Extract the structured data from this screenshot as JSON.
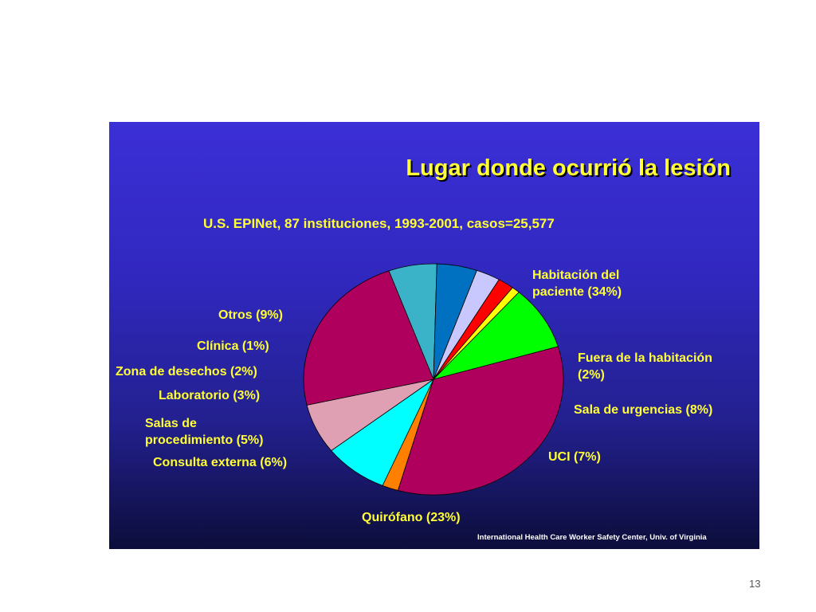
{
  "slide": {
    "page_number": "13"
  },
  "chart_data": {
    "type": "pie",
    "title": "Lugar donde ocurrió la lesión",
    "subtitle": "U.S. EPINet, 87 instituciones, 1993-2001, casos=25,577",
    "source": "International Health Care Worker Safety Center, Univ. of Virginia",
    "slices": [
      {
        "lines": [
          "Habitación del",
          "paciente (34%)"
        ],
        "value": 34,
        "color": "#b0005e"
      },
      {
        "lines": [
          "Fuera de la habitación",
          "(2%)"
        ],
        "value": 2,
        "color": "#ff8000"
      },
      {
        "lines": [
          "Sala de urgencias (8%)"
        ],
        "value": 8,
        "color": "#00ffff"
      },
      {
        "lines": [
          "UCI (7%)"
        ],
        "value": 7,
        "color": "#e0a0b4"
      },
      {
        "lines": [
          "Quirófano (23%)"
        ],
        "value": 23,
        "color": "#b0005e"
      },
      {
        "lines": [
          "Consulta externa (6%)"
        ],
        "value": 6,
        "color": "#3ab3c8"
      },
      {
        "lines": [
          "Salas de",
          "procedimiento (5%)"
        ],
        "value": 5,
        "color": "#0070c0"
      },
      {
        "lines": [
          "Laboratorio (3%)"
        ],
        "value": 3,
        "color": "#c8c8ff"
      },
      {
        "lines": [
          "Zona de desechos (2%)"
        ],
        "value": 2,
        "color": "#ff0000"
      },
      {
        "lines": [
          "Clínica (1%)"
        ],
        "value": 1,
        "color": "#ffff00"
      },
      {
        "lines": [
          "Otros (9%)"
        ],
        "value": 9,
        "color": "#00ff00"
      }
    ]
  }
}
